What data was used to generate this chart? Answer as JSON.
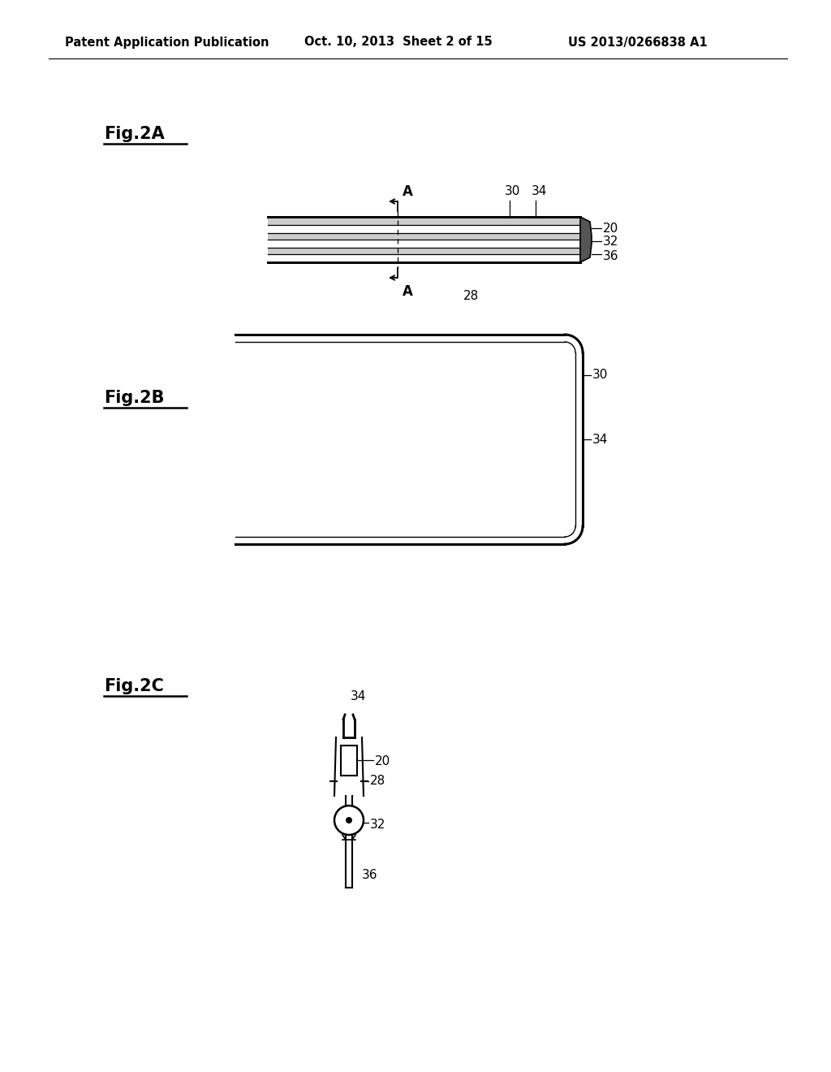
{
  "bg_color": "#ffffff",
  "header_left": "Patent Application Publication",
  "header_mid": "Oct. 10, 2013  Sheet 2 of 15",
  "header_right": "US 2013/0266838 A1",
  "fig2A_label": "Fig.2A",
  "fig2B_label": "Fig.2B",
  "fig2C_label": "Fig.2C",
  "line_color": "#000000",
  "gray_light": "#cccccc",
  "gray_medium": "#999999",
  "gray_dark": "#666666"
}
